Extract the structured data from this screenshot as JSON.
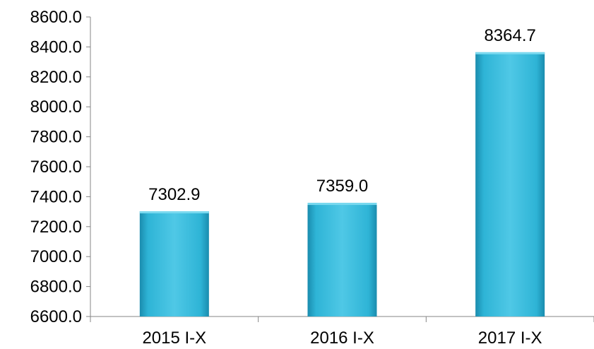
{
  "chart_data": {
    "type": "bar",
    "categories": [
      "2015 I-X",
      "2016 I-X",
      "2017 I-X"
    ],
    "values": [
      7302.9,
      7359.0,
      8364.7
    ],
    "value_labels": [
      "7302.9",
      "7359.0",
      "8364.7"
    ],
    "ylim": [
      6600,
      8600
    ],
    "yticks": [
      6600,
      6800,
      7000,
      7200,
      7400,
      7600,
      7800,
      8000,
      8200,
      8400,
      8600
    ],
    "ytick_labels": [
      "6600.0",
      "6800.0",
      "7000.0",
      "7200.0",
      "7400.0",
      "7600.0",
      "7800.0",
      "8000.0",
      "8200.0",
      "8400.0",
      "8600.0"
    ],
    "title": "",
    "xlabel": "",
    "ylabel": "",
    "grid": false,
    "legend": "none",
    "colors": {
      "bar_light": "#4FC8E6",
      "bar_mid": "#2EB4D6",
      "bar_dark": "#1A8CAE",
      "axis": "#868686",
      "text": "#000000"
    }
  }
}
